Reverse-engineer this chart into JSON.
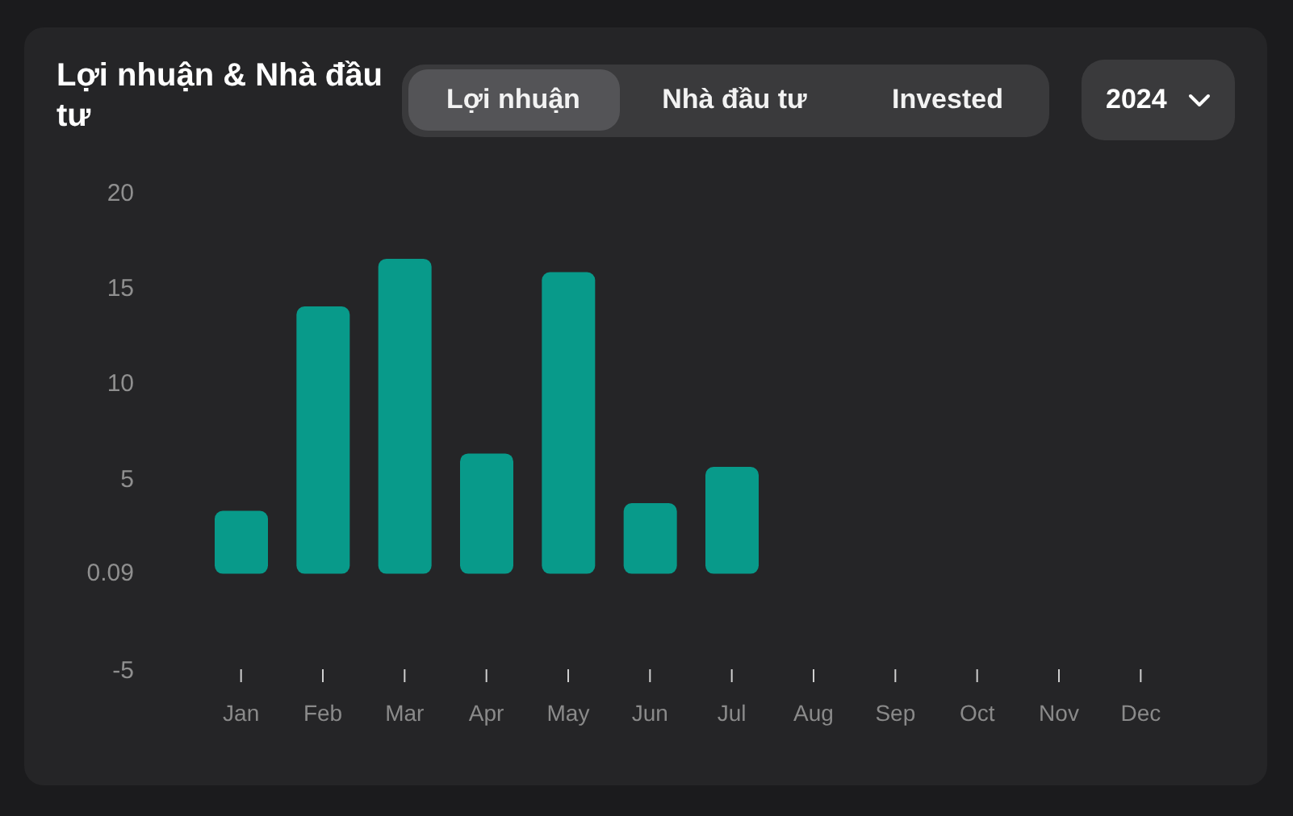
{
  "chart_data": {
    "type": "bar",
    "title": "Lợi nhuận & Nhà đầu tư",
    "annotations": [
      "Lợi nhuận",
      "Nhà đầu tư",
      "Invested",
      "2024"
    ],
    "categories": [
      "Jan",
      "Feb",
      "Mar",
      "Apr",
      "May",
      "Jun",
      "Jul",
      "Aug",
      "Sep",
      "Oct",
      "Nov",
      "Dec"
    ],
    "values": [
      3.3,
      14,
      16.5,
      6.3,
      15.8,
      3.7,
      5.6,
      null,
      null,
      null,
      null,
      null
    ],
    "color": "#089a8a",
    "ylim": [
      -5,
      20
    ],
    "yticks": [
      -5,
      0.09,
      5,
      10,
      15,
      20
    ]
  }
}
